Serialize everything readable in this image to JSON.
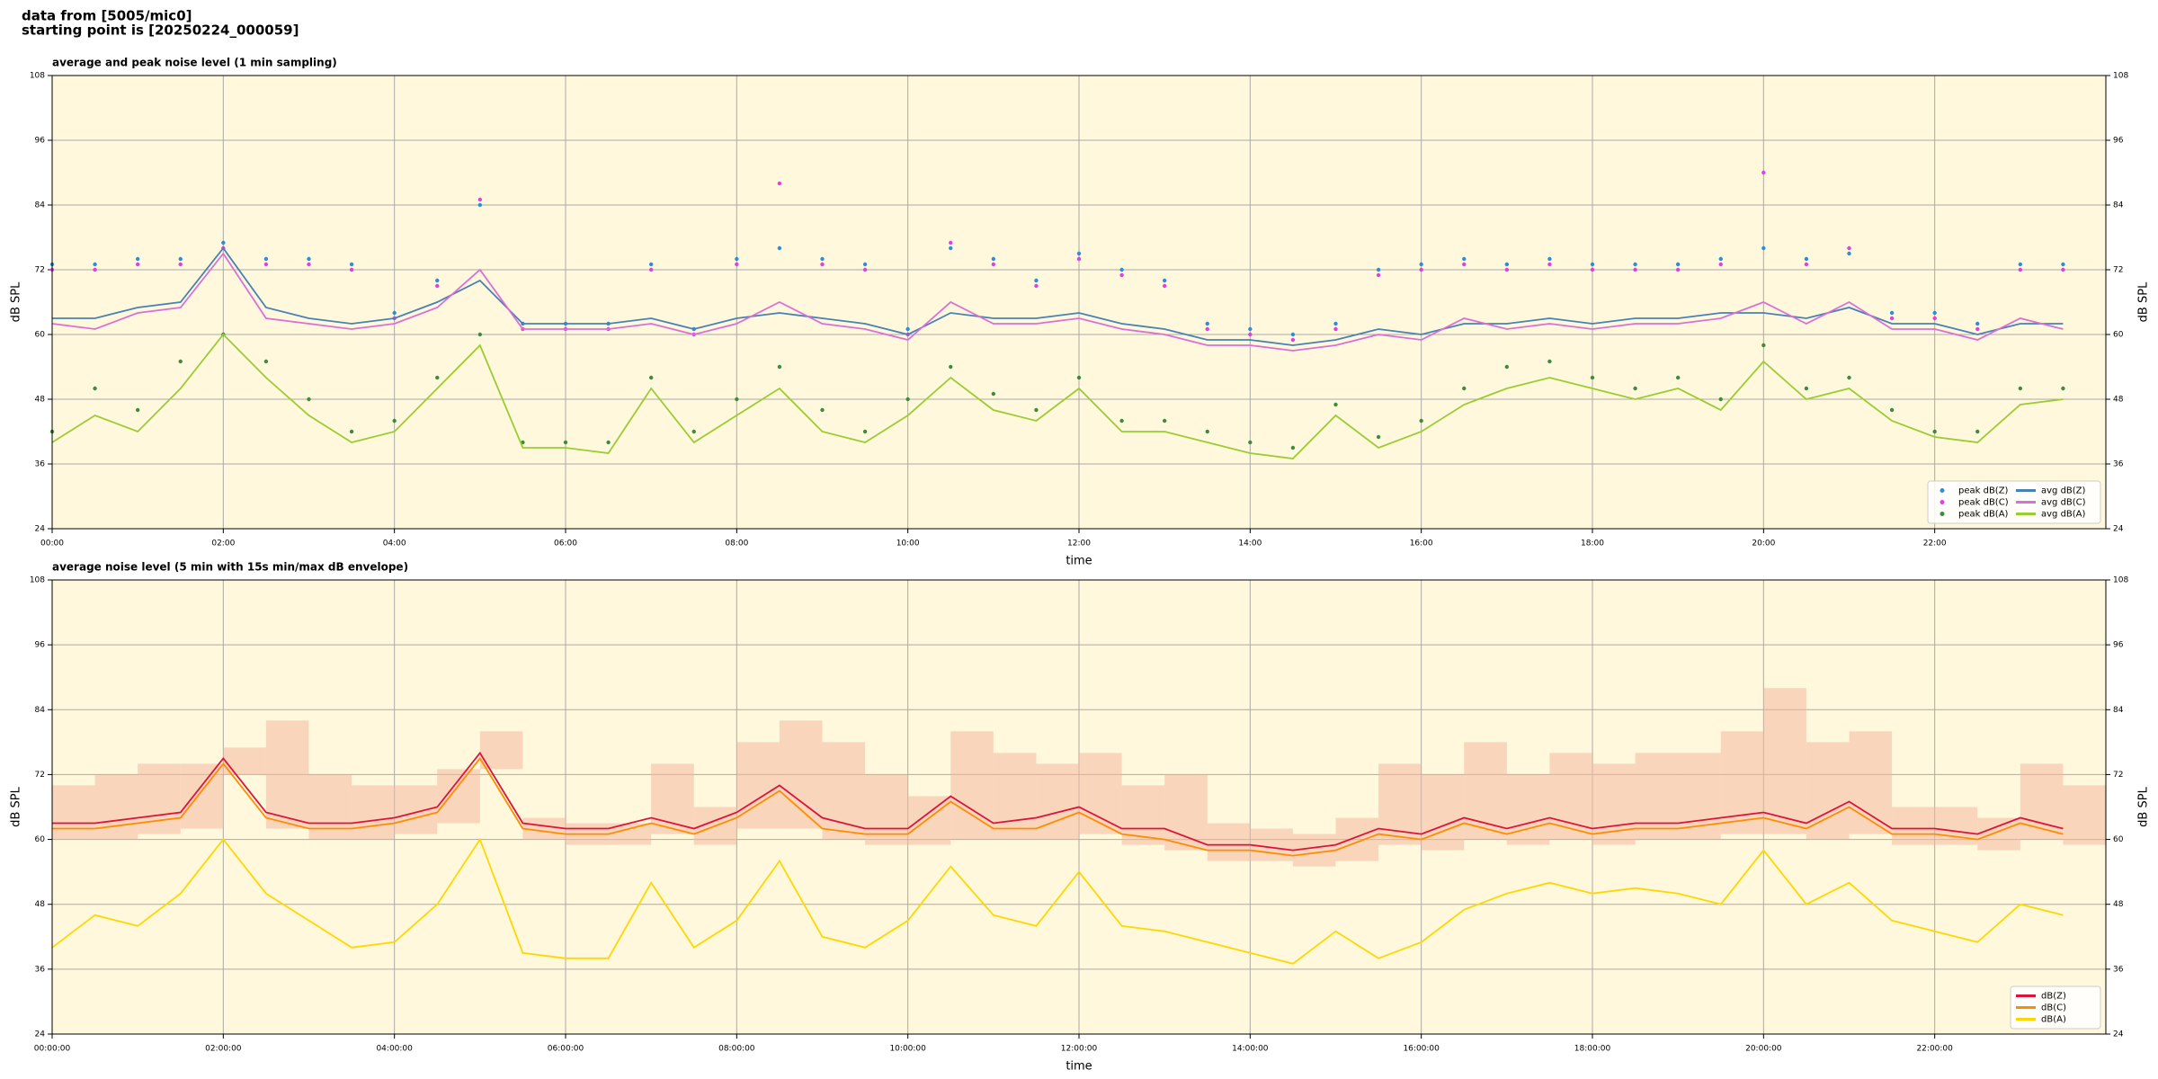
{
  "header": {
    "lines": [
      "data from [5005/mic0]",
      "starting point is [20250224_000059]"
    ]
  },
  "chart_data": [
    {
      "type": "line",
      "title": "average and peak noise level (1 min sampling)",
      "x_label": "time",
      "y_label": "dB SPL",
      "background": "#fff8dc",
      "grid": true,
      "legend": "lower right",
      "legend_columns": 2,
      "xlim": [
        0,
        24
      ],
      "ylim": [
        24,
        108
      ],
      "xticks": [
        {
          "value": 0,
          "label": "00:00"
        },
        {
          "value": 2,
          "label": "02:00"
        },
        {
          "value": 4,
          "label": "04:00"
        },
        {
          "value": 6,
          "label": "06:00"
        },
        {
          "value": 8,
          "label": "08:00"
        },
        {
          "value": 10,
          "label": "10:00"
        },
        {
          "value": 12,
          "label": "12:00"
        },
        {
          "value": 14,
          "label": "14:00"
        },
        {
          "value": 16,
          "label": "16:00"
        },
        {
          "value": 18,
          "label": "18:00"
        },
        {
          "value": 20,
          "label": "20:00"
        },
        {
          "value": 22,
          "label": "22:00"
        }
      ],
      "yticks": [
        24,
        36,
        48,
        60,
        72,
        84,
        96,
        108
      ],
      "x": [
        0,
        0.5,
        1,
        1.5,
        2,
        2.5,
        3,
        3.5,
        4,
        4.5,
        5,
        5.5,
        6,
        6.5,
        7,
        7.5,
        8,
        8.5,
        9,
        9.5,
        10,
        10.5,
        11,
        11.5,
        12,
        12.5,
        13,
        13.5,
        14,
        14.5,
        15,
        15.5,
        16,
        16.5,
        17,
        17.5,
        18,
        18.5,
        19,
        19.5,
        20,
        20.5,
        21,
        21.5,
        22,
        22.5,
        23,
        23.5
      ],
      "series": [
        {
          "name": "peak dB(Z)",
          "type": "scatter",
          "color": "#2a8fd6",
          "values": [
            73,
            73,
            74,
            74,
            77,
            74,
            74,
            73,
            64,
            70,
            84,
            62,
            62,
            62,
            73,
            61,
            74,
            76,
            74,
            73,
            61,
            76,
            74,
            70,
            75,
            72,
            70,
            62,
            61,
            60,
            62,
            72,
            73,
            74,
            73,
            74,
            73,
            73,
            73,
            74,
            76,
            74,
            75,
            64,
            64,
            62,
            73,
            73
          ]
        },
        {
          "name": "peak dB(C)",
          "type": "scatter",
          "color": "#e040e0",
          "values": [
            72,
            72,
            73,
            73,
            76,
            73,
            73,
            72,
            63,
            69,
            85,
            61,
            61,
            61,
            72,
            60,
            73,
            88,
            73,
            72,
            60,
            77,
            73,
            69,
            74,
            71,
            69,
            61,
            60,
            59,
            61,
            71,
            72,
            73,
            72,
            73,
            72,
            72,
            72,
            73,
            90,
            73,
            76,
            63,
            63,
            61,
            72,
            72
          ]
        },
        {
          "name": "peak dB(A)",
          "type": "scatter",
          "color": "#3d8b3d",
          "values": [
            42,
            50,
            46,
            55,
            60,
            55,
            48,
            42,
            44,
            52,
            60,
            40,
            40,
            40,
            52,
            42,
            48,
            54,
            46,
            42,
            48,
            54,
            49,
            46,
            52,
            44,
            44,
            42,
            40,
            39,
            47,
            41,
            44,
            50,
            54,
            55,
            52,
            50,
            52,
            48,
            58,
            50,
            52,
            46,
            42,
            42,
            50,
            50
          ]
        },
        {
          "name": "avg dB(Z)",
          "type": "line",
          "color": "#4682b4",
          "values": [
            63,
            63,
            65,
            66,
            76,
            65,
            63,
            62,
            63,
            66,
            70,
            62,
            62,
            62,
            63,
            61,
            63,
            64,
            63,
            62,
            60,
            64,
            63,
            63,
            64,
            62,
            61,
            59,
            59,
            58,
            59,
            61,
            60,
            62,
            62,
            63,
            62,
            63,
            63,
            64,
            64,
            63,
            65,
            62,
            62,
            60,
            62,
            62
          ]
        },
        {
          "name": "avg dB(C)",
          "type": "line",
          "color": "#da70d6",
          "values": [
            62,
            61,
            64,
            65,
            75,
            63,
            62,
            61,
            62,
            65,
            72,
            61,
            61,
            61,
            62,
            60,
            62,
            66,
            62,
            61,
            59,
            66,
            62,
            62,
            63,
            61,
            60,
            58,
            58,
            57,
            58,
            60,
            59,
            63,
            61,
            62,
            61,
            62,
            62,
            63,
            66,
            62,
            66,
            61,
            61,
            59,
            63,
            61
          ]
        },
        {
          "name": "avg dB(A)",
          "type": "line",
          "color": "#9acd32",
          "values": [
            40,
            45,
            42,
            50,
            60,
            52,
            45,
            40,
            42,
            50,
            58,
            39,
            39,
            38,
            50,
            40,
            45,
            50,
            42,
            40,
            45,
            52,
            46,
            44,
            50,
            42,
            42,
            40,
            38,
            37,
            45,
            39,
            42,
            47,
            50,
            52,
            50,
            48,
            50,
            46,
            55,
            48,
            50,
            44,
            41,
            40,
            47,
            48
          ]
        }
      ]
    },
    {
      "type": "line",
      "title": "average noise level (5 min with 15s min/max dB envelope)",
      "x_label": "time",
      "y_label": "dB SPL",
      "background": "#fff8dc",
      "grid": true,
      "legend": "lower right",
      "legend_columns": 1,
      "xlim": [
        0,
        24
      ],
      "ylim": [
        24,
        108
      ],
      "xticks": [
        {
          "value": 0,
          "label": "00:00:00"
        },
        {
          "value": 2,
          "label": "02:00:00"
        },
        {
          "value": 4,
          "label": "04:00:00"
        },
        {
          "value": 6,
          "label": "06:00:00"
        },
        {
          "value": 8,
          "label": "08:00:00"
        },
        {
          "value": 10,
          "label": "10:00:00"
        },
        {
          "value": 12,
          "label": "12:00:00"
        },
        {
          "value": 14,
          "label": "14:00:00"
        },
        {
          "value": 16,
          "label": "16:00:00"
        },
        {
          "value": 18,
          "label": "18:00:00"
        },
        {
          "value": 20,
          "label": "20:00:00"
        },
        {
          "value": 22,
          "label": "22:00:00"
        }
      ],
      "yticks": [
        24,
        36,
        48,
        60,
        72,
        84,
        96,
        108
      ],
      "x": [
        0,
        0.5,
        1,
        1.5,
        2,
        2.5,
        3,
        3.5,
        4,
        4.5,
        5,
        5.5,
        6,
        6.5,
        7,
        7.5,
        8,
        8.5,
        9,
        9.5,
        10,
        10.5,
        11,
        11.5,
        12,
        12.5,
        13,
        13.5,
        14,
        14.5,
        15,
        15.5,
        16,
        16.5,
        17,
        17.5,
        18,
        18.5,
        19,
        19.5,
        20,
        20.5,
        21,
        21.5,
        22,
        22.5,
        23,
        23.5
      ],
      "envelope": {
        "color": "#f4b8a0",
        "low": [
          60,
          60,
          61,
          62,
          72,
          62,
          60,
          60,
          61,
          63,
          73,
          60,
          59,
          59,
          61,
          59,
          62,
          62,
          60,
          59,
          59,
          60,
          60,
          60,
          61,
          59,
          58,
          56,
          56,
          55,
          56,
          59,
          58,
          60,
          59,
          60,
          59,
          60,
          60,
          61,
          61,
          60,
          61,
          59,
          59,
          58,
          60,
          59
        ],
        "high": [
          70,
          72,
          74,
          74,
          77,
          82,
          72,
          70,
          70,
          73,
          80,
          64,
          63,
          63,
          74,
          66,
          78,
          82,
          78,
          72,
          68,
          80,
          76,
          74,
          76,
          70,
          72,
          63,
          62,
          61,
          64,
          74,
          72,
          78,
          72,
          76,
          74,
          76,
          76,
          80,
          88,
          78,
          80,
          66,
          66,
          64,
          74,
          70
        ]
      },
      "series": [
        {
          "name": "dB(Z)",
          "type": "line",
          "color": "#dc143c",
          "values": [
            63,
            63,
            64,
            65,
            75,
            65,
            63,
            63,
            64,
            66,
            76,
            63,
            62,
            62,
            64,
            62,
            65,
            70,
            64,
            62,
            62,
            68,
            63,
            64,
            66,
            62,
            62,
            59,
            59,
            58,
            59,
            62,
            61,
            64,
            62,
            64,
            62,
            63,
            63,
            64,
            65,
            63,
            67,
            62,
            62,
            61,
            64,
            62
          ]
        },
        {
          "name": "dB(C)",
          "type": "line",
          "color": "#ff8c00",
          "values": [
            62,
            62,
            63,
            64,
            74,
            64,
            62,
            62,
            63,
            65,
            75,
            62,
            61,
            61,
            63,
            61,
            64,
            69,
            62,
            61,
            61,
            67,
            62,
            62,
            65,
            61,
            60,
            58,
            58,
            57,
            58,
            61,
            60,
            63,
            61,
            63,
            61,
            62,
            62,
            63,
            64,
            62,
            66,
            61,
            61,
            60,
            63,
            61
          ]
        },
        {
          "name": "dB(A)",
          "type": "line",
          "color": "#ffd700",
          "values": [
            40,
            46,
            44,
            50,
            60,
            50,
            45,
            40,
            41,
            48,
            60,
            39,
            38,
            38,
            52,
            40,
            45,
            56,
            42,
            40,
            45,
            55,
            46,
            44,
            54,
            44,
            43,
            41,
            39,
            37,
            43,
            38,
            41,
            47,
            50,
            52,
            50,
            51,
            50,
            48,
            58,
            48,
            52,
            45,
            43,
            41,
            48,
            46
          ]
        }
      ]
    }
  ]
}
